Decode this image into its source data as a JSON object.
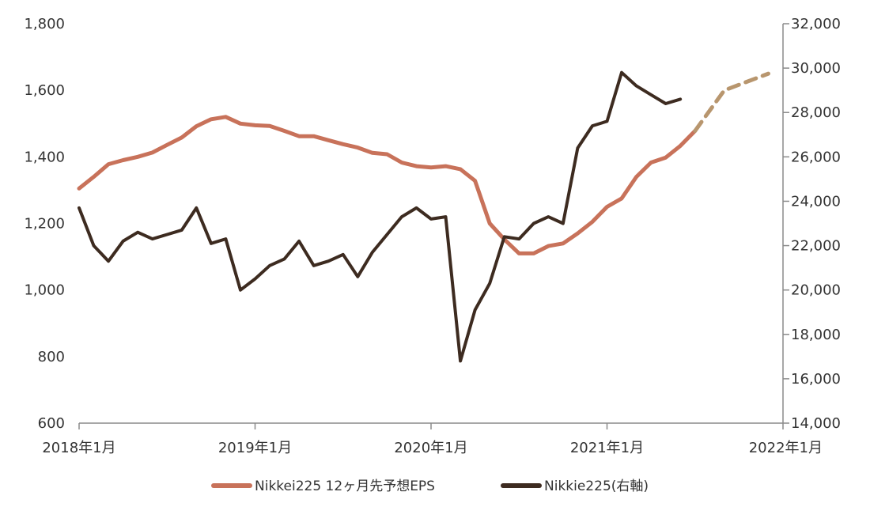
{
  "chart_data": {
    "type": "line",
    "x_axis": {
      "ticks": [
        "2018-01",
        "2019-01",
        "2020-01",
        "2021-01",
        "2022-01"
      ],
      "tick_labels": [
        "2018年1月",
        "2019年1月",
        "2020年1月",
        "2021年1月",
        "2022年1月"
      ],
      "range": [
        "2018-01",
        "2022-01"
      ]
    },
    "y_left": {
      "ticks": [
        600,
        800,
        1000,
        1200,
        1400,
        1600,
        1800
      ],
      "tick_labels": [
        "600",
        "800",
        "1,000",
        "1,200",
        "1,400",
        "1,600",
        "1,800"
      ],
      "range": [
        600,
        1800
      ]
    },
    "y_right": {
      "ticks": [
        14000,
        16000,
        18000,
        20000,
        22000,
        24000,
        26000,
        28000,
        30000,
        32000
      ],
      "tick_labels": [
        "14,000",
        "16,000",
        "18,000",
        "20,000",
        "22,000",
        "24,000",
        "26,000",
        "28,000",
        "30,000",
        "32,000"
      ],
      "range": [
        14000,
        32000
      ]
    },
    "grid": false,
    "legend": {
      "placement": "bottom-center",
      "entries": [
        "Nikkei225 12ヶ月先予想EPS",
        "Nikkie225(右軸)"
      ]
    },
    "series": [
      {
        "name": "Nikkei225 12ヶ月先予想EPS",
        "axis": "left",
        "color": "#c8725a",
        "points": [
          [
            "2018-01",
            1305
          ],
          [
            "2018-02",
            1340
          ],
          [
            "2018-03",
            1378
          ],
          [
            "2018-04",
            1390
          ],
          [
            "2018-05",
            1400
          ],
          [
            "2018-06",
            1413
          ],
          [
            "2018-07",
            1436
          ],
          [
            "2018-08",
            1458
          ],
          [
            "2018-09",
            1492
          ],
          [
            "2018-10",
            1513
          ],
          [
            "2018-11",
            1520
          ],
          [
            "2018-12",
            1500
          ],
          [
            "2019-01",
            1495
          ],
          [
            "2019-02",
            1493
          ],
          [
            "2019-03",
            1478
          ],
          [
            "2019-04",
            1462
          ],
          [
            "2019-05",
            1462
          ],
          [
            "2019-06",
            1450
          ],
          [
            "2019-07",
            1438
          ],
          [
            "2019-08",
            1428
          ],
          [
            "2019-09",
            1412
          ],
          [
            "2019-10",
            1408
          ],
          [
            "2019-11",
            1383
          ],
          [
            "2019-12",
            1372
          ],
          [
            "2020-01",
            1368
          ],
          [
            "2020-02",
            1372
          ],
          [
            "2020-03",
            1363
          ],
          [
            "2020-04",
            1328
          ],
          [
            "2020-05",
            1200
          ],
          [
            "2020-06",
            1152
          ],
          [
            "2020-07",
            1110
          ],
          [
            "2020-08",
            1110
          ],
          [
            "2020-09",
            1132
          ],
          [
            "2020-10",
            1140
          ],
          [
            "2020-11",
            1170
          ],
          [
            "2020-12",
            1205
          ],
          [
            "2021-01",
            1250
          ],
          [
            "2021-02",
            1275
          ],
          [
            "2021-03",
            1340
          ],
          [
            "2021-04",
            1383
          ],
          [
            "2021-05",
            1398
          ],
          [
            "2021-06",
            1433
          ],
          [
            "2021-07",
            1478
          ]
        ]
      },
      {
        "name": "Nikkei225 12ヶ月先予想EPS",
        "axis": "left",
        "color": "#b8966e",
        "style": "dashed",
        "points": [
          [
            "2021-07",
            1478
          ],
          [
            "2021-09",
            1600
          ],
          [
            "2021-12",
            1650
          ]
        ]
      },
      {
        "name": "Nikkie225(右軸)",
        "axis": "right",
        "color": "#3d2b20",
        "points": [
          [
            "2018-01",
            23700
          ],
          [
            "2018-02",
            22000
          ],
          [
            "2018-03",
            21300
          ],
          [
            "2018-04",
            22200
          ],
          [
            "2018-05",
            22600
          ],
          [
            "2018-06",
            22300
          ],
          [
            "2018-07",
            22500
          ],
          [
            "2018-08",
            22700
          ],
          [
            "2018-09",
            23700
          ],
          [
            "2018-10",
            22100
          ],
          [
            "2018-11",
            22300
          ],
          [
            "2018-12",
            20000
          ],
          [
            "2019-01",
            20500
          ],
          [
            "2019-02",
            21100
          ],
          [
            "2019-03",
            21400
          ],
          [
            "2019-04",
            22200
          ],
          [
            "2019-05",
            21100
          ],
          [
            "2019-06",
            21300
          ],
          [
            "2019-07",
            21600
          ],
          [
            "2019-08",
            20600
          ],
          [
            "2019-09",
            21700
          ],
          [
            "2019-10",
            22500
          ],
          [
            "2019-11",
            23300
          ],
          [
            "2019-12",
            23700
          ],
          [
            "2020-01",
            23200
          ],
          [
            "2020-02",
            23300
          ],
          [
            "2020-03",
            16800
          ],
          [
            "2020-04",
            19100
          ],
          [
            "2020-05",
            20300
          ],
          [
            "2020-06",
            22400
          ],
          [
            "2020-07",
            22300
          ],
          [
            "2020-08",
            23000
          ],
          [
            "2020-09",
            23300
          ],
          [
            "2020-10",
            23000
          ],
          [
            "2020-11",
            26400
          ],
          [
            "2020-12",
            27400
          ],
          [
            "2021-01",
            27600
          ],
          [
            "2021-02",
            29800
          ],
          [
            "2021-03",
            29200
          ],
          [
            "2021-04",
            28800
          ],
          [
            "2021-05",
            28400
          ],
          [
            "2021-06",
            28600
          ]
        ]
      }
    ]
  }
}
